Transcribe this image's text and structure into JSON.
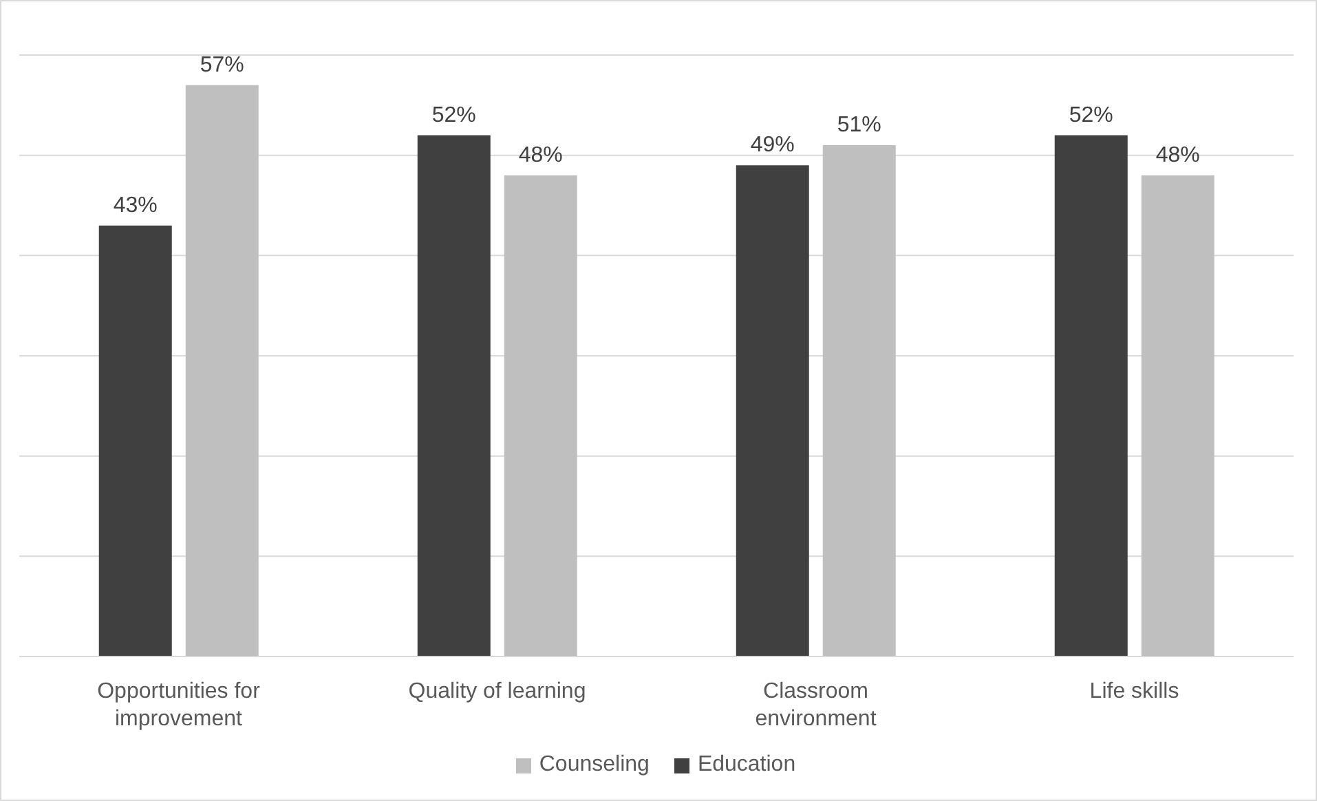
{
  "chart_data": {
    "type": "bar",
    "categories": [
      "Opportunities for improvement",
      "Quality of learning",
      "Classroom environment",
      "Life skills"
    ],
    "series": [
      {
        "name": "Education",
        "color": "#404040",
        "values": [
          43,
          52,
          49,
          52
        ],
        "value_labels": [
          "43%",
          "52%",
          "49%",
          "52%"
        ]
      },
      {
        "name": "Counseling",
        "color": "#bfbfbf",
        "values": [
          57,
          48,
          51,
          48
        ],
        "value_labels": [
          "57%",
          "48%",
          "51%",
          "48%"
        ]
      }
    ],
    "tick_labels": "x",
    "grid": "y",
    "legend": "bottom"
  }
}
